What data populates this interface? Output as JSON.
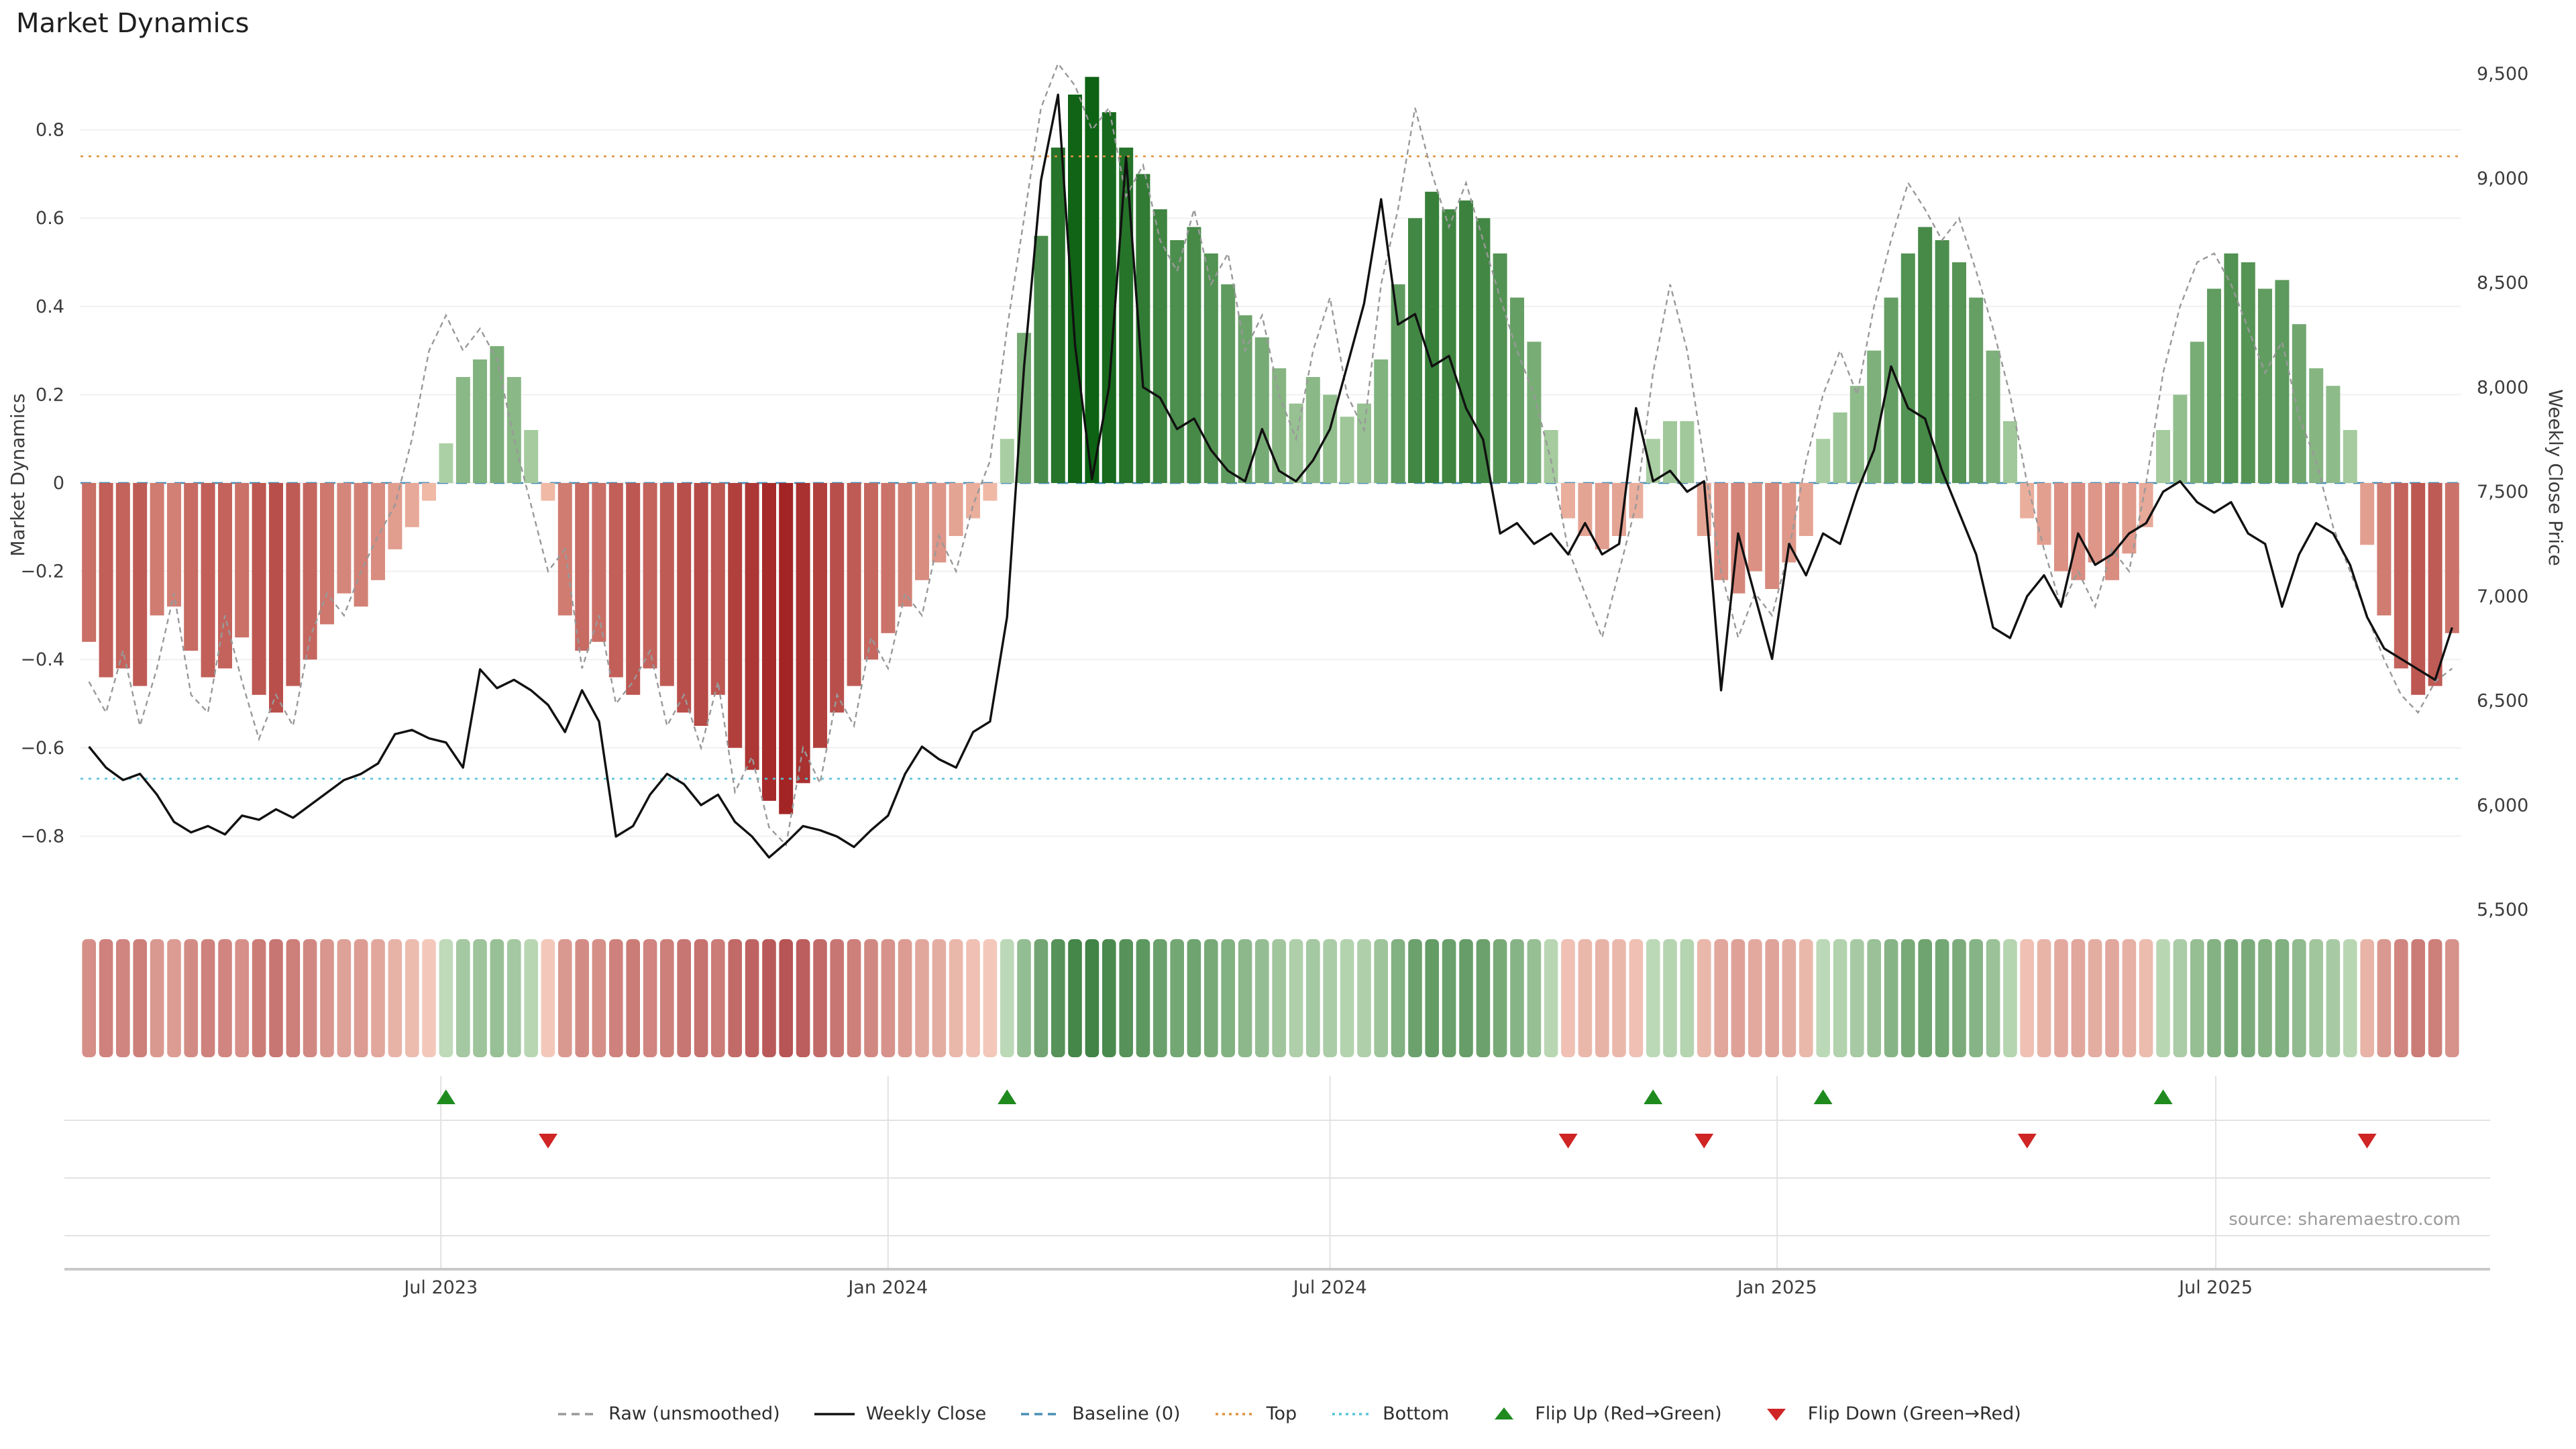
{
  "title": "Market Dynamics",
  "source": "source: sharemaestro.com",
  "left_axis": {
    "label": "Market Dynamics",
    "ticks": [
      {
        "v": 0.8,
        "label": "0.8"
      },
      {
        "v": 0.6,
        "label": "0.6"
      },
      {
        "v": 0.4,
        "label": "0.4"
      },
      {
        "v": 0.2,
        "label": "0.2"
      },
      {
        "v": 0,
        "label": "0"
      },
      {
        "v": -0.2,
        "label": "−0.2"
      },
      {
        "v": -0.4,
        "label": "−0.4"
      },
      {
        "v": -0.6,
        "label": "−0.6"
      },
      {
        "v": -0.8,
        "label": "−0.8"
      }
    ]
  },
  "right_axis": {
    "label": "Weekly Close Price",
    "ticks": [
      {
        "v": 9500,
        "label": "9,500"
      },
      {
        "v": 9000,
        "label": "9,000"
      },
      {
        "v": 8500,
        "label": "8,500"
      },
      {
        "v": 8000,
        "label": "8,000"
      },
      {
        "v": 7500,
        "label": "7,500"
      },
      {
        "v": 7000,
        "label": "7,000"
      },
      {
        "v": 6500,
        "label": "6,500"
      },
      {
        "v": 6000,
        "label": "6,000"
      },
      {
        "v": 5500,
        "label": "5,500"
      }
    ]
  },
  "legend": [
    {
      "label": "Raw (unsmoothed)",
      "type": "line",
      "style": "dashed",
      "color": "#999999",
      "icon": "raw-line-icon"
    },
    {
      "label": "Weekly Close",
      "type": "line",
      "style": "solid",
      "color": "#111111",
      "icon": "weekly-close-line-icon"
    },
    {
      "label": "Baseline (0)",
      "type": "line",
      "style": "dashed",
      "color": "#4a8fb5",
      "icon": "baseline-line-icon"
    },
    {
      "label": "Top",
      "type": "line",
      "style": "dotted",
      "color": "#e0923f",
      "icon": "top-line-icon"
    },
    {
      "label": "Bottom",
      "type": "line",
      "style": "dotted",
      "color": "#55c4d8",
      "icon": "bottom-line-icon"
    },
    {
      "label": "Flip Up (Red→Green)",
      "type": "marker",
      "shape": "triangle-up",
      "color": "#1f8b1f",
      "icon": "flip-up-triangle-icon"
    },
    {
      "label": "Flip Down (Green→Red)",
      "type": "marker",
      "shape": "triangle-down",
      "color": "#cf2525",
      "icon": "flip-down-triangle-icon"
    }
  ],
  "colors": {
    "green_light": "#c6e2bd",
    "green_dark": "#0d6213",
    "red_light": "#f6c6b2",
    "red_dark": "#9e1b1d",
    "baseline": "#4a8fb5",
    "top": "#e0923f",
    "bottom": "#55c4d8",
    "raw_line": "#999999",
    "close_line": "#111111",
    "flip_up": "#1f8b1f",
    "flip_down": "#cf2525",
    "grid": "#f0f0f0",
    "panel_grid": "#e2e2e2",
    "axis_line": "#c9c9c9",
    "text": "#3c3c3c",
    "muted_text": "#9b9b9b"
  },
  "chart_data": {
    "type": "bar+line",
    "x_type": "weekly",
    "start_date": "2023-02-06",
    "n_points": 140,
    "baseline": 0,
    "top_threshold": 0.74,
    "bottom_threshold": -0.67,
    "left_axis_range": [
      -0.97,
      0.98
    ],
    "right_axis_range": [
      5490,
      9610
    ],
    "x_ticks": [
      {
        "week": 20.7,
        "label": "Jul 2023"
      },
      {
        "week": 47.0,
        "label": "Jan 2024"
      },
      {
        "week": 73.0,
        "label": "Jul 2024"
      },
      {
        "week": 99.3,
        "label": "Jan 2025"
      },
      {
        "week": 125.1,
        "label": "Jul 2025"
      }
    ],
    "flip_up_weeks": [
      21,
      54,
      92,
      102,
      122
    ],
    "flip_down_weeks": [
      27,
      87,
      95,
      114,
      134
    ],
    "series": [
      {
        "name": "Market Dynamics",
        "type": "bar",
        "axis": "left",
        "values": [
          -0.36,
          -0.44,
          -0.42,
          -0.46,
          -0.3,
          -0.28,
          -0.38,
          -0.44,
          -0.42,
          -0.35,
          -0.48,
          -0.52,
          -0.46,
          -0.4,
          -0.32,
          -0.25,
          -0.28,
          -0.22,
          -0.15,
          -0.1,
          -0.04,
          0.09,
          0.24,
          0.28,
          0.31,
          0.24,
          0.12,
          -0.04,
          -0.3,
          -0.38,
          -0.36,
          -0.44,
          -0.48,
          -0.42,
          -0.46,
          -0.52,
          -0.55,
          -0.48,
          -0.6,
          -0.65,
          -0.72,
          -0.75,
          -0.68,
          -0.6,
          -0.52,
          -0.46,
          -0.4,
          -0.34,
          -0.28,
          -0.22,
          -0.18,
          -0.12,
          -0.08,
          -0.04,
          0.1,
          0.34,
          0.56,
          0.76,
          0.88,
          0.92,
          0.84,
          0.76,
          0.7,
          0.62,
          0.55,
          0.58,
          0.52,
          0.45,
          0.38,
          0.33,
          0.26,
          0.18,
          0.24,
          0.2,
          0.15,
          0.18,
          0.28,
          0.45,
          0.6,
          0.66,
          0.62,
          0.64,
          0.6,
          0.52,
          0.42,
          0.32,
          0.12,
          -0.08,
          -0.12,
          -0.15,
          -0.12,
          -0.08,
          0.1,
          0.14,
          0.14,
          -0.12,
          -0.22,
          -0.25,
          -0.2,
          -0.24,
          -0.18,
          -0.12,
          0.1,
          0.16,
          0.22,
          0.3,
          0.42,
          0.52,
          0.58,
          0.55,
          0.5,
          0.42,
          0.3,
          0.14,
          -0.08,
          -0.14,
          -0.2,
          -0.22,
          -0.18,
          -0.22,
          -0.16,
          -0.1,
          0.12,
          0.2,
          0.32,
          0.44,
          0.52,
          0.5,
          0.44,
          0.46,
          0.36,
          0.26,
          0.22,
          0.12,
          -0.14,
          -0.3,
          -0.42,
          -0.48,
          -0.46,
          -0.34
        ]
      },
      {
        "name": "Raw (unsmoothed)",
        "type": "line",
        "style": "dashed",
        "axis": "left",
        "values": [
          -0.45,
          -0.52,
          -0.38,
          -0.55,
          -0.42,
          -0.25,
          -0.48,
          -0.52,
          -0.3,
          -0.45,
          -0.58,
          -0.48,
          -0.55,
          -0.35,
          -0.25,
          -0.3,
          -0.2,
          -0.12,
          -0.05,
          0.1,
          0.3,
          0.38,
          0.3,
          0.35,
          0.28,
          0.1,
          -0.05,
          -0.2,
          -0.15,
          -0.42,
          -0.3,
          -0.5,
          -0.45,
          -0.38,
          -0.55,
          -0.48,
          -0.6,
          -0.45,
          -0.7,
          -0.62,
          -0.78,
          -0.82,
          -0.6,
          -0.68,
          -0.48,
          -0.55,
          -0.35,
          -0.42,
          -0.25,
          -0.3,
          -0.12,
          -0.2,
          -0.05,
          0.05,
          0.35,
          0.6,
          0.85,
          0.95,
          0.9,
          0.8,
          0.85,
          0.65,
          0.72,
          0.55,
          0.48,
          0.62,
          0.45,
          0.52,
          0.3,
          0.38,
          0.2,
          0.1,
          0.3,
          0.42,
          0.2,
          0.12,
          0.45,
          0.62,
          0.85,
          0.7,
          0.58,
          0.68,
          0.55,
          0.42,
          0.3,
          0.2,
          0.05,
          -0.15,
          -0.25,
          -0.35,
          -0.2,
          -0.05,
          0.25,
          0.45,
          0.3,
          0.05,
          -0.2,
          -0.35,
          -0.25,
          -0.3,
          -0.15,
          0.05,
          0.2,
          0.3,
          0.2,
          0.4,
          0.55,
          0.68,
          0.62,
          0.55,
          0.6,
          0.48,
          0.35,
          0.2,
          0.0,
          -0.15,
          -0.28,
          -0.2,
          -0.28,
          -0.15,
          -0.2,
          0.0,
          0.25,
          0.4,
          0.5,
          0.52,
          0.45,
          0.35,
          0.25,
          0.32,
          0.15,
          0.05,
          -0.1,
          -0.2,
          -0.3,
          -0.4,
          -0.48,
          -0.52,
          -0.45,
          -0.42
        ]
      },
      {
        "name": "Weekly Close",
        "type": "line",
        "style": "solid",
        "axis": "right",
        "values": [
          6280,
          6180,
          6120,
          6150,
          6050,
          5920,
          5870,
          5900,
          5860,
          5950,
          5930,
          5980,
          5940,
          6000,
          6060,
          6120,
          6150,
          6200,
          6340,
          6360,
          6320,
          6300,
          6180,
          6650,
          6560,
          6600,
          6550,
          6480,
          6350,
          6550,
          6400,
          5850,
          5900,
          6050,
          6150,
          6100,
          6000,
          6050,
          5920,
          5850,
          5750,
          5820,
          5900,
          5880,
          5850,
          5800,
          5880,
          5950,
          6150,
          6280,
          6220,
          6180,
          6350,
          6400,
          6900,
          8100,
          8990,
          9400,
          8200,
          7560,
          8000,
          9100,
          8000,
          7950,
          7800,
          7850,
          7700,
          7600,
          7550,
          7800,
          7600,
          7550,
          7650,
          7800,
          8100,
          8400,
          8900,
          8300,
          8350,
          8100,
          8150,
          7900,
          7750,
          7300,
          7350,
          7250,
          7300,
          7200,
          7350,
          7200,
          7250,
          7900,
          7550,
          7600,
          7500,
          7550,
          6550,
          7300,
          7000,
          6700,
          7250,
          7100,
          7300,
          7250,
          7500,
          7700,
          8100,
          7900,
          7850,
          7600,
          7400,
          7200,
          6850,
          6800,
          7000,
          7100,
          6950,
          7300,
          7150,
          7200,
          7300,
          7350,
          7500,
          7550,
          7450,
          7400,
          7450,
          7300,
          7250,
          6950,
          7200,
          7350,
          7300,
          7150,
          6900,
          6750,
          6700,
          6650,
          6600,
          6850
        ]
      }
    ]
  }
}
